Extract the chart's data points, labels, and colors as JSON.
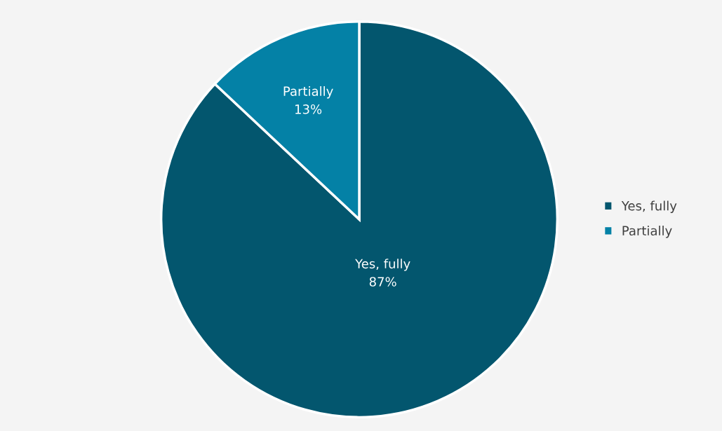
{
  "chart_data": {
    "type": "pie",
    "categories": [
      "Yes, fully",
      "Partially"
    ],
    "values": [
      87,
      13
    ],
    "colors": [
      "#03566e",
      "#0481a6"
    ],
    "value_labels": [
      "Yes, fully\n87%",
      "Partially\n13%"
    ],
    "legend": "right"
  }
}
